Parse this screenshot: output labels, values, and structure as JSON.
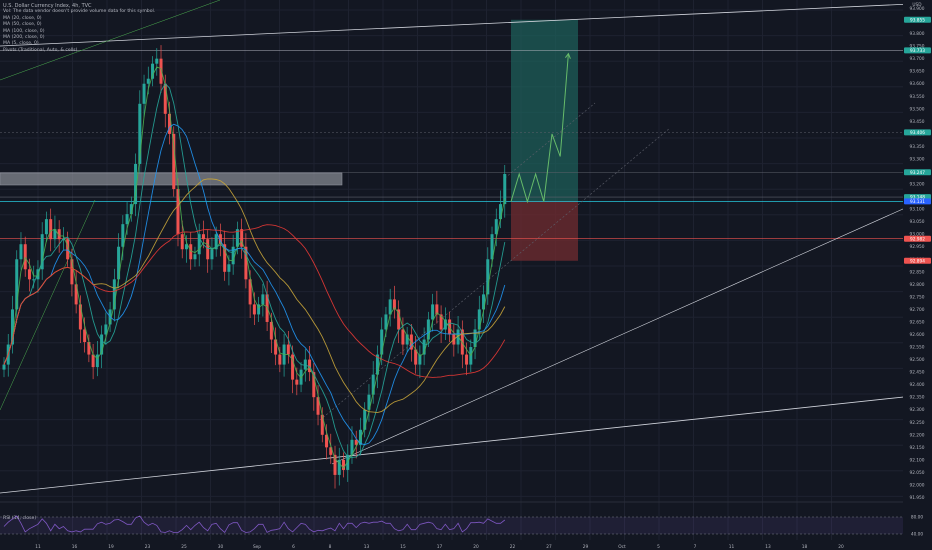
{
  "title": "U.S. Dollar Currency Index, 4h, TVC",
  "legend": [
    "Vol: The data vendor doesn't provide volume data for this symbol.",
    "MA (20, close, 0)",
    "MA (50, close, 0)",
    "MA (100, close, 0)",
    "MA (200, close, 0)",
    "MA (5, close, 0)",
    "Pivots (Traditional, Auto, & cells)"
  ],
  "rsi_label": "RSI (14, close)",
  "currency": "USD",
  "colors": {
    "background": "#131722",
    "up": "#26a69a",
    "down": "#ef5350",
    "target_zone": "#1e5e58",
    "stop_zone": "#6b2a2f",
    "rsi": "#7e57c2",
    "ma_blue": "#2196f3",
    "ma_green": "#4caf50",
    "ma_orange": "#c6a43a",
    "ma_red": "#e53935",
    "projection": "#66bb6a"
  },
  "price_axis": {
    "labels": [
      "93.900",
      "93.850",
      "93.800",
      "93.750",
      "93.700",
      "93.650",
      "93.600",
      "93.550",
      "93.500",
      "93.450",
      "93.400",
      "93.350",
      "93.300",
      "93.250",
      "93.200",
      "93.150",
      "93.100",
      "93.050",
      "93.000",
      "92.950",
      "92.900",
      "92.850",
      "92.800",
      "92.750",
      "92.700",
      "92.650",
      "92.600",
      "92.550",
      "92.500",
      "92.450",
      "92.400",
      "92.350",
      "92.300",
      "92.250",
      "92.200",
      "92.150",
      "92.100",
      "92.050",
      "92.000",
      "91.950"
    ],
    "badges": [
      {
        "text": "93.855",
        "color": "#26a69a"
      },
      {
        "text": "93.733",
        "color": "#26a69a"
      },
      {
        "text": "93.406",
        "color": "#26a69a"
      },
      {
        "text": "93.247",
        "color": "#26a69a"
      },
      {
        "text": "93.148",
        "color": "#26a69a"
      },
      {
        "text": "93.131",
        "color": "#2962ff"
      },
      {
        "text": "92.982",
        "color": "#ef5350"
      },
      {
        "text": "92.894",
        "color": "#ef5350"
      }
    ]
  },
  "rsi_axis": [
    "80.00",
    "40.00"
  ],
  "time_axis": [
    "11",
    "16",
    "19",
    "23",
    "25",
    "30",
    "Sep",
    "6",
    "8",
    "13",
    "15",
    "17",
    "20",
    "22",
    "27",
    "29",
    "Oct",
    "5",
    "7",
    "11",
    "13",
    "18",
    "20"
  ],
  "chart_data": {
    "type": "candlestick",
    "title": "U.S. Dollar Currency Index, 4h, TVC",
    "ylim": [
      91.94,
      93.91
    ],
    "close": [
      92.48,
      92.56,
      92.7,
      92.9,
      92.96,
      92.86,
      92.82,
      92.82,
      92.86,
      93.0,
      93.06,
      92.98,
      93.02,
      92.98,
      92.98,
      92.9,
      92.8,
      92.72,
      92.62,
      92.57,
      92.52,
      92.47,
      92.52,
      92.6,
      92.64,
      92.7,
      92.82,
      92.95,
      93.04,
      93.08,
      93.12,
      93.28,
      93.52,
      93.6,
      93.62,
      93.68,
      93.7,
      93.6,
      93.48,
      93.4,
      93.18,
      93.0,
      92.94,
      92.96,
      92.9,
      92.92,
      93.0,
      92.98,
      92.9,
      92.94,
      93.0,
      92.96,
      92.85,
      92.88,
      92.95,
      93.02,
      92.95,
      92.82,
      92.72,
      92.68,
      92.72,
      92.76,
      92.65,
      92.58,
      92.52,
      92.48,
      92.56,
      92.52,
      92.42,
      92.4,
      92.46,
      92.5,
      92.45,
      92.35,
      92.28,
      92.2,
      92.15,
      92.12,
      92.04,
      92.1,
      92.06,
      92.12,
      92.18,
      92.16,
      92.22,
      92.3,
      92.36,
      92.44,
      92.52,
      92.62,
      92.68,
      92.74,
      92.7,
      92.62,
      92.56,
      92.6,
      92.54,
      92.48,
      92.52,
      92.58,
      92.66,
      92.72,
      92.68,
      92.62,
      92.66,
      92.6,
      92.56,
      92.62,
      92.52,
      92.48,
      92.55,
      92.62,
      92.7,
      92.76,
      92.9,
      93.0,
      93.06,
      93.12,
      93.24
    ],
    "annotations": {
      "resistance_zone": [
        93.12,
        93.16
      ],
      "entry": 93.131,
      "stop": 92.894,
      "target": 93.855,
      "stop_zone_bottom": 92.894,
      "target_zone_top": 93.855,
      "horizontal_lines": [
        93.733,
        93.406,
        93.247,
        93.148,
        92.982
      ],
      "projection_path": [
        93.13,
        93.24,
        93.13,
        93.24,
        93.13,
        93.4,
        93.31,
        93.72
      ]
    },
    "moving_averages": [
      {
        "name": "MA (20, close, 0)",
        "color": "#4caf50"
      },
      {
        "name": "MA (50, close, 0)",
        "color": "#2196f3"
      },
      {
        "name": "MA (100, close, 0)",
        "color": "#c6a43a"
      },
      {
        "name": "MA (200, close, 0)",
        "color": "#e53935"
      },
      {
        "name": "MA (5, close, 0)",
        "color": "#26a69a"
      }
    ],
    "rsi": {
      "name": "RSI (14, close)",
      "levels": [
        80,
        40
      ]
    }
  }
}
